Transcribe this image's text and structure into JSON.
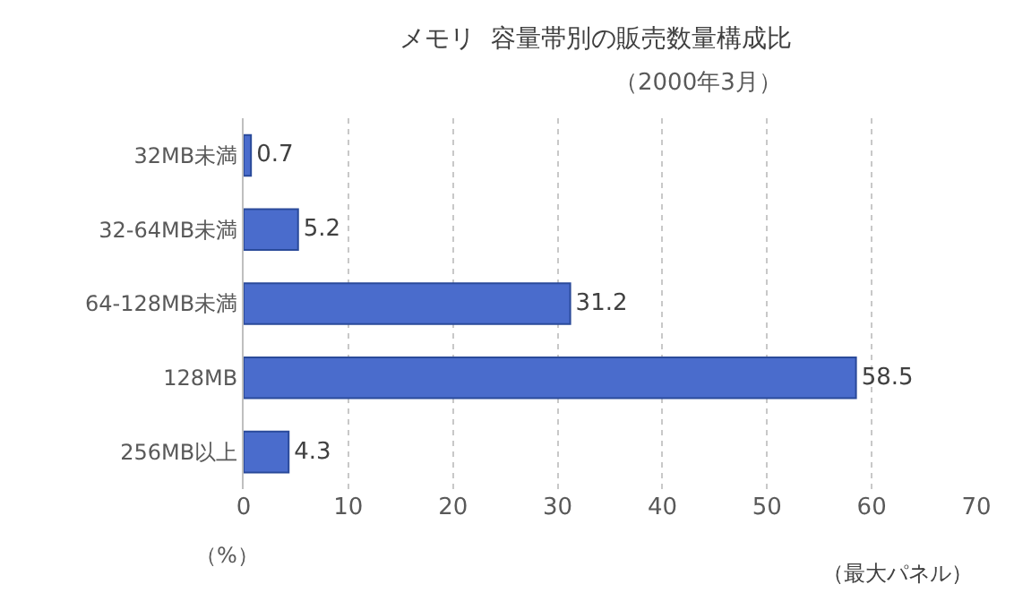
{
  "chart_data": {
    "type": "bar",
    "orientation": "horizontal",
    "title": "メモリ  容量帯別の販売数量構成比",
    "subtitle": "（2000年3月）",
    "xlabel": "（%）",
    "categories": [
      "32MB未満",
      "32-64MB未満",
      "64-128MB未満",
      "128MB",
      "256MB以上"
    ],
    "values": [
      0.7,
      5.2,
      31.2,
      58.5,
      4.3
    ],
    "color": "#4a6ccc",
    "data_labels": true,
    "xlim": [
      0,
      70
    ],
    "xticks": [
      0,
      10,
      20,
      30,
      40,
      50,
      60,
      70
    ],
    "grid": "x",
    "legend": false,
    "annotations": [
      "（最大パネル）"
    ]
  }
}
